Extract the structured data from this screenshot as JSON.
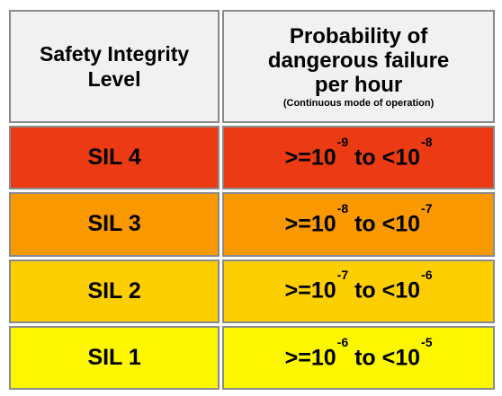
{
  "header": {
    "level_line1": "Safety Integrity",
    "level_line2": "Level",
    "prob_line1": "Probability of",
    "prob_line2": "dangerous failure",
    "prob_line3": "per hour",
    "prob_note": "(Continuous mode of operation)"
  },
  "rows": [
    {
      "level": "SIL 4",
      "lower_prefix": ">=10",
      "lower_exp": "-9",
      "connector": " to ",
      "upper_prefix": "<10",
      "upper_exp": "-8",
      "color": "#ec3b14"
    },
    {
      "level": "SIL 3",
      "lower_prefix": ">=10",
      "lower_exp": "-8",
      "connector": " to ",
      "upper_prefix": "<10",
      "upper_exp": "-7",
      "color": "#fa9800"
    },
    {
      "level": "SIL 2",
      "lower_prefix": ">=10",
      "lower_exp": "-7",
      "connector": " to ",
      "upper_prefix": "<10",
      "upper_exp": "-6",
      "color": "#fdce00"
    },
    {
      "level": "SIL 1",
      "lower_prefix": ">=10",
      "lower_exp": "-6",
      "connector": " to ",
      "upper_prefix": "<10",
      "upper_exp": "-5",
      "color": "#fcf600"
    }
  ]
}
